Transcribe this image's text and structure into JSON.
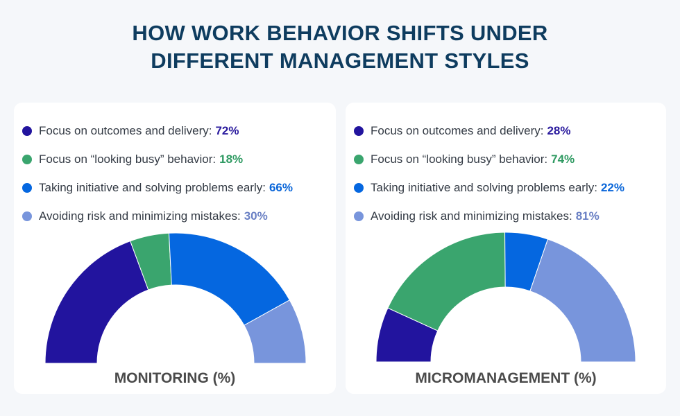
{
  "title_lines": [
    "HOW WORK BEHAVIOR SHIFTS UNDER",
    "DIFFERENT MANAGEMENT STYLES"
  ],
  "chart_data": [
    {
      "type": "pie",
      "variant": "semi-donut",
      "title": "MONITORING (%)",
      "categories": [
        "Focus on outcomes and delivery",
        "Focus on “looking busy” behavior",
        "Taking initiative and solving problems early",
        "Avoiding risk and minimizing mistakes"
      ],
      "values": [
        72,
        18,
        66,
        30
      ],
      "labels": [
        "72%",
        "18%",
        "66%",
        "30%"
      ],
      "colors": [
        "#22149e",
        "#3aa56e",
        "#0567e0",
        "#7895dc"
      ],
      "label_colors": [
        "#2a1a9e",
        "#2f9a62",
        "#0a66d9",
        "#6a80c4"
      ],
      "legend": "top-left"
    },
    {
      "type": "pie",
      "variant": "semi-donut",
      "title": "MICROMANAGEMENT (%)",
      "categories": [
        "Focus on outcomes and delivery",
        "Focus on “looking busy” behavior",
        "Taking initiative and solving problems early",
        "Avoiding risk and minimizing mistakes"
      ],
      "values": [
        28,
        74,
        22,
        81
      ],
      "labels": [
        "28%",
        "74%",
        "22%",
        "81%"
      ],
      "colors": [
        "#22149e",
        "#3aa56e",
        "#0567e0",
        "#7895dc"
      ],
      "label_colors": [
        "#2a1a9e",
        "#2f9a62",
        "#0a66d9",
        "#6a80c4"
      ],
      "legend": "top-left"
    }
  ]
}
